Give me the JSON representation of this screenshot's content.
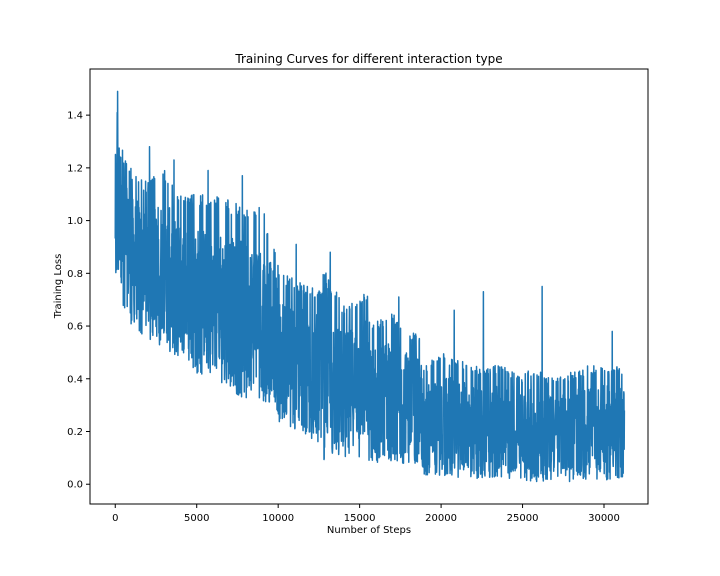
{
  "chart_data": {
    "type": "line",
    "title": "Training Curves for different interaction type",
    "xlabel": "Number of Steps",
    "ylabel": "Training Loss",
    "xlim": [
      -1550,
      32700
    ],
    "ylim": [
      -0.075,
      1.575
    ],
    "xticks": [
      0,
      5000,
      10000,
      15000,
      20000,
      25000,
      30000
    ],
    "xtick_labels": [
      "0",
      "5000",
      "10000",
      "15000",
      "20000",
      "25000",
      "30000"
    ],
    "yticks": [
      0.0,
      0.2,
      0.4,
      0.6,
      0.8,
      1.0,
      1.2,
      1.4
    ],
    "ytick_labels": [
      "0.0",
      "0.2",
      "0.4",
      "0.6",
      "0.8",
      "1.0",
      "1.2",
      "1.4"
    ],
    "grid": false,
    "series": [
      {
        "color": "#1f77b4",
        "x_start": 0,
        "x_end": 31250,
        "noisy": true,
        "envelope": {
          "x": [
            0,
            200,
            500,
            1000,
            2000,
            3000,
            4000,
            5000,
            6000,
            7000,
            8000,
            9000,
            9900,
            10000,
            11000,
            12000,
            12700,
            12800,
            14000,
            15500,
            15600,
            17000,
            18800,
            18900,
            20000,
            22000,
            24000,
            25000,
            25200,
            27000,
            29000,
            31250
          ],
          "upper": [
            1.35,
            1.49,
            1.25,
            1.2,
            1.15,
            1.2,
            1.1,
            1.1,
            1.1,
            1.08,
            1.05,
            1.05,
            0.9,
            0.82,
            0.78,
            0.75,
            0.75,
            0.82,
            0.68,
            0.75,
            0.62,
            0.65,
            0.55,
            0.45,
            0.5,
            0.45,
            0.45,
            0.4,
            0.45,
            0.4,
            0.45,
            0.45
          ],
          "lower": [
            0.75,
            0.8,
            0.65,
            0.6,
            0.55,
            0.52,
            0.45,
            0.42,
            0.4,
            0.36,
            0.32,
            0.31,
            0.3,
            0.22,
            0.2,
            0.17,
            0.15,
            0.08,
            0.1,
            0.1,
            0.05,
            0.07,
            0.08,
            0.03,
            0.03,
            0.02,
            0.02,
            0.02,
            0.01,
            0.01,
            0.01,
            0.02
          ],
          "spikes": [
            {
              "x": 150,
              "y": 1.49
            },
            {
              "x": 2100,
              "y": 1.28
            },
            {
              "x": 3600,
              "y": 1.23
            },
            {
              "x": 5700,
              "y": 1.19
            },
            {
              "x": 7800,
              "y": 1.17
            },
            {
              "x": 11100,
              "y": 0.91
            },
            {
              "x": 13200,
              "y": 0.88
            },
            {
              "x": 17400,
              "y": 0.71
            },
            {
              "x": 20800,
              "y": 0.66
            },
            {
              "x": 22600,
              "y": 0.73
            },
            {
              "x": 26200,
              "y": 0.75
            },
            {
              "x": 30500,
              "y": 0.58
            }
          ]
        }
      }
    ]
  }
}
